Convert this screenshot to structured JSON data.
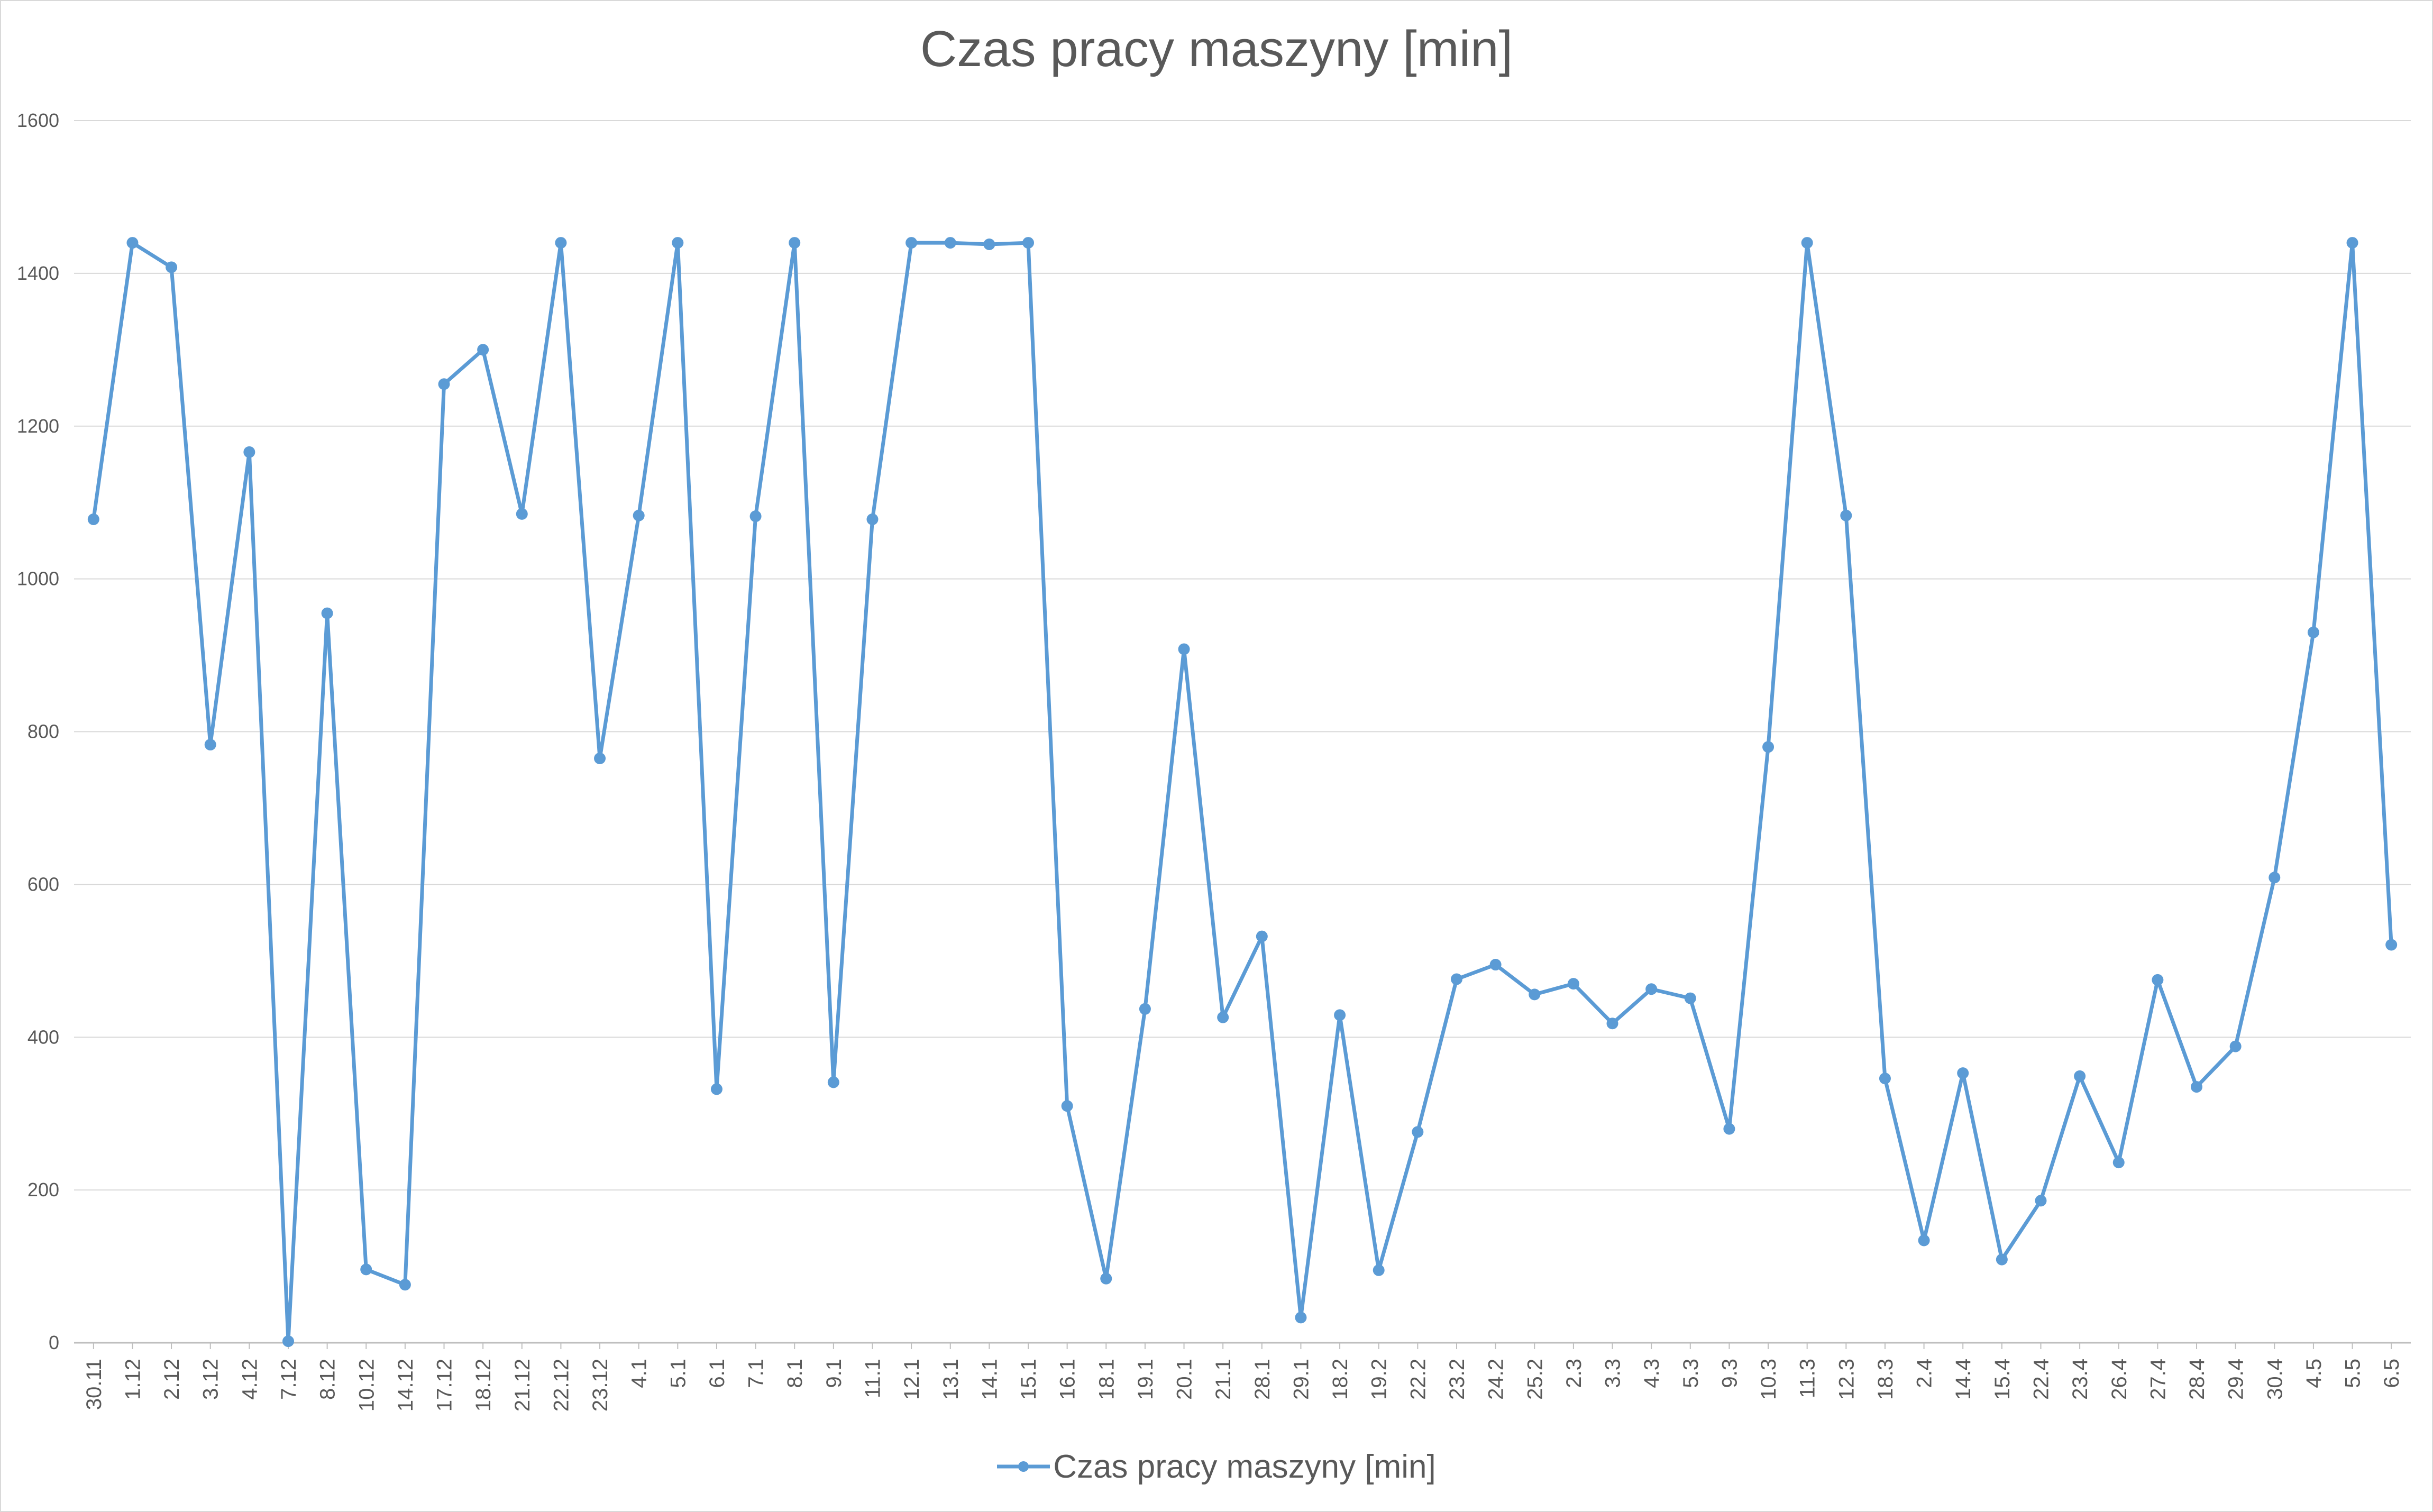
{
  "chart_data": {
    "type": "line",
    "title": "Czas pracy maszyny [min]",
    "xlabel": "",
    "ylabel": "",
    "ylim": [
      0,
      1600
    ],
    "yticks": [
      "0",
      "200",
      "400",
      "600",
      "800",
      "1000",
      "1200",
      "1400",
      "1600"
    ],
    "grid": true,
    "legend_position": "bottom",
    "line_color": "#5b9bd5",
    "categories": [
      "30.11",
      "1.12",
      "2.12",
      "3.12",
      "4.12",
      "7.12",
      "8.12",
      "10.12",
      "14.12",
      "17.12",
      "18.12",
      "21.12",
      "22.12",
      "23.12",
      "4.1",
      "5.1",
      "6.1",
      "7.1",
      "8.1",
      "9.1",
      "11.1",
      "12.1",
      "13.1",
      "14.1",
      "15.1",
      "16.1",
      "18.1",
      "19.1",
      "20.1",
      "21.1",
      "28.1",
      "29.1",
      "18.2",
      "19.2",
      "22.2",
      "23.2",
      "24.2",
      "25.2",
      "2.3",
      "3.3",
      "4.3",
      "5.3",
      "9.3",
      "10.3",
      "11.3",
      "12.3",
      "18.3",
      "2.4",
      "14.4",
      "15.4",
      "22.4",
      "23.4",
      "26.4",
      "27.4",
      "28.4",
      "29.4",
      "30.4",
      "4.5",
      "5.5",
      "6.5"
    ],
    "series": [
      {
        "name": "Czas pracy maszyny [min]",
        "values": [
          1078,
          1440,
          1408,
          783,
          1166,
          2,
          955,
          96,
          76,
          1255,
          1300,
          1085,
          1440,
          765,
          1083,
          1440,
          332,
          1082,
          1440,
          341,
          1078,
          1440,
          1440,
          1438,
          1440,
          310,
          84,
          437,
          908,
          426,
          532,
          33,
          429,
          95,
          276,
          476,
          495,
          456,
          470,
          418,
          463,
          451,
          280,
          780,
          1440,
          1083,
          346,
          134,
          353,
          109,
          186,
          349,
          236,
          475,
          335,
          388,
          609,
          930,
          1440,
          521
        ]
      }
    ]
  }
}
